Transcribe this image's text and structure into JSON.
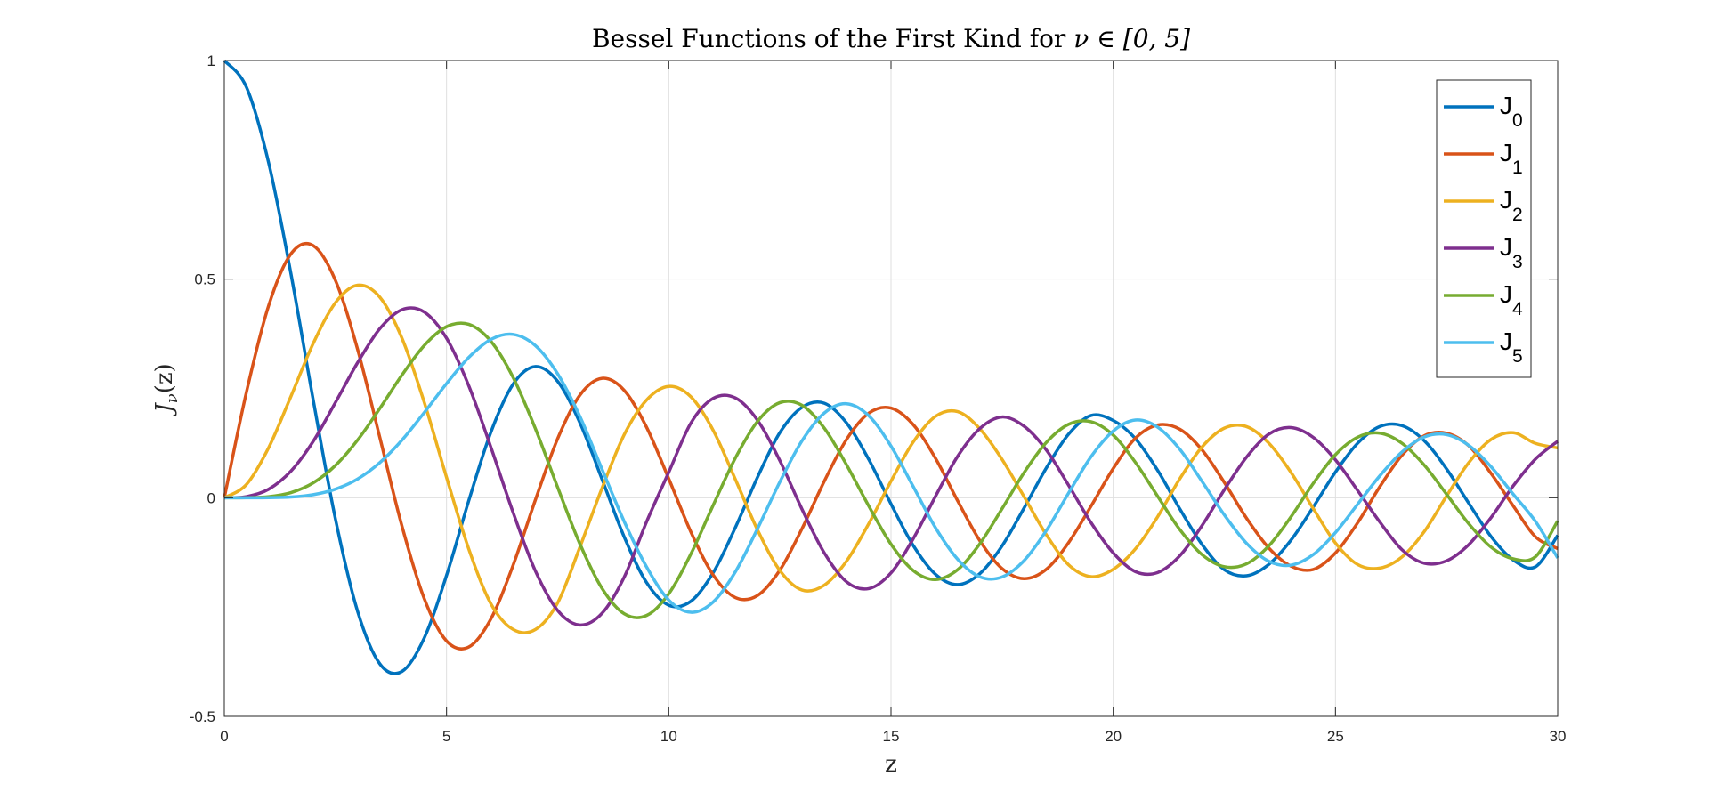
{
  "chart_data": {
    "type": "line",
    "title_text": "Bessel Functions of the First Kind for ",
    "title_math": "ν ∈ [0, 5]",
    "xlabel": "z",
    "ylabel_main": "J",
    "ylabel_sub": "ν",
    "ylabel_paren": "(z)",
    "xlim": [
      0,
      30
    ],
    "ylim": [
      -0.5,
      1
    ],
    "xticks": [
      "0",
      "5",
      "10",
      "15",
      "20",
      "25",
      "30"
    ],
    "yticks": [
      "-0.5",
      "0",
      "0.5",
      "1"
    ],
    "grid": true,
    "legend_position": "top-right",
    "sampling": {
      "x_start": 0,
      "x_end": 30,
      "step": 0.5
    },
    "series": [
      {
        "name": "J",
        "subscript": "0",
        "color": "#0072BD",
        "values": [
          1.0,
          0.9385,
          0.7652,
          0.5118,
          0.2239,
          -0.0484,
          -0.2601,
          -0.3801,
          -0.3971,
          -0.3205,
          -0.1776,
          -0.0068,
          0.1506,
          0.2601,
          0.3001,
          0.2663,
          0.1717,
          0.0419,
          -0.0903,
          -0.1939,
          -0.2459,
          -0.2366,
          -0.1712,
          -0.0677,
          0.0477,
          0.149,
          0.2069,
          0.2162,
          0.1711,
          0.0875,
          -0.0142,
          -0.1092,
          -0.1749,
          -0.1986,
          -0.1734,
          -0.1101,
          -0.0224,
          0.069,
          0.146,
          0.1881,
          0.1767,
          0.135,
          0.0626,
          -0.0258,
          -0.107,
          -0.1646,
          -0.1784,
          -0.1524,
          -0.097,
          -0.0214,
          0.0587,
          0.1247,
          0.163,
          0.1648,
          0.1302,
          0.0659,
          -0.0127,
          -0.0888,
          -0.1423,
          -0.158,
          -0.086
        ]
      },
      {
        "name": "J",
        "subscript": "1",
        "color": "#D95319",
        "values": [
          0.0,
          0.2423,
          0.4401,
          0.5579,
          0.5767,
          0.4971,
          0.3391,
          0.1374,
          -0.066,
          -0.2311,
          -0.3276,
          -0.3414,
          -0.2767,
          -0.1538,
          -0.0047,
          0.1352,
          0.2346,
          0.2731,
          0.2453,
          0.1613,
          0.0435,
          -0.0789,
          -0.1768,
          -0.2284,
          -0.2234,
          -0.1655,
          -0.0703,
          0.038,
          0.1334,
          0.1934,
          0.2051,
          0.1672,
          0.0904,
          -0.0071,
          -0.0984,
          -0.1621,
          -0.185,
          -0.1632,
          -0.102,
          -0.0195,
          0.0668,
          0.1362,
          0.1663,
          0.1565,
          0.1092,
          0.035,
          -0.0469,
          -0.1149,
          -0.1564,
          -0.164,
          -0.1263,
          -0.0572,
          0.0256,
          0.0976,
          0.1418,
          0.1476,
          0.1187,
          0.0558,
          -0.0187,
          -0.0893,
          -0.1164
        ]
      },
      {
        "name": "J",
        "subscript": "2",
        "color": "#EDB120",
        "values": [
          0.0,
          0.0306,
          0.1149,
          0.2321,
          0.3528,
          0.4461,
          0.4861,
          0.4586,
          0.3641,
          0.2178,
          0.0466,
          -0.1173,
          -0.2429,
          -0.3014,
          -0.3014,
          -0.2404,
          -0.113,
          0.0223,
          0.1448,
          0.2235,
          0.2546,
          0.2306,
          0.154,
          0.0416,
          -0.0742,
          -0.1665,
          -0.2112,
          -0.1999,
          -0.1448,
          -0.0592,
          0.038,
          0.1275,
          0.1861,
          0.197,
          0.1576,
          0.0875,
          0.0014,
          -0.0854,
          -0.1537,
          -0.1804,
          -0.1636,
          -0.1168,
          -0.0434,
          0.0437,
          0.1163,
          0.1592,
          0.1626,
          0.125,
          0.058,
          -0.0247,
          -0.1035,
          -0.1528,
          -0.1609,
          -0.1351,
          -0.0772,
          0.004,
          0.0804,
          0.1332,
          0.1487,
          0.1243,
          0.1139
        ]
      },
      {
        "name": "J",
        "subscript": "3",
        "color": "#7E2F8E",
        "values": [
          0.0,
          0.0026,
          0.0196,
          0.061,
          0.1289,
          0.2178,
          0.3091,
          0.3868,
          0.4302,
          0.4247,
          0.3648,
          0.2561,
          0.1148,
          -0.0343,
          -0.1676,
          -0.2578,
          -0.2911,
          -0.2641,
          -0.1809,
          -0.0552,
          0.0584,
          0.1711,
          0.2273,
          0.2282,
          0.1768,
          0.0847,
          -0.0268,
          -0.1263,
          -0.1923,
          -0.2078,
          -0.1718,
          -0.0937,
          0.003,
          0.0948,
          0.1584,
          0.1847,
          0.1631,
          0.1084,
          0.0279,
          -0.0568,
          -0.1262,
          -0.169,
          -0.171,
          -0.1324,
          -0.0634,
          0.0182,
          0.0929,
          0.1454,
          0.1604,
          0.1381,
          0.0867,
          0.0165,
          -0.0558,
          -0.1192,
          -0.1498,
          -0.1442,
          -0.1071,
          -0.0454,
          0.0272,
          0.0885,
          0.1292
        ]
      },
      {
        "name": "J",
        "subscript": "4",
        "color": "#77AC30",
        "values": [
          0.0,
          0.0002,
          0.0025,
          0.0118,
          0.034,
          0.0738,
          0.132,
          0.2044,
          0.2811,
          0.3484,
          0.3912,
          0.3966,
          0.3576,
          0.2748,
          0.1578,
          0.0238,
          -0.1054,
          -0.2075,
          -0.2655,
          -0.2693,
          -0.2196,
          -0.128,
          -0.0169,
          0.0911,
          0.1751,
          0.2176,
          0.2112,
          0.159,
          0.0753,
          -0.019,
          -0.1062,
          -0.1664,
          -0.187,
          -0.1645,
          -0.1051,
          -0.0249,
          0.0584,
          0.127,
          0.1681,
          0.1739,
          0.1432,
          0.0808,
          0.0034,
          -0.073,
          -0.1302,
          -0.1577,
          -0.1511,
          -0.1102,
          -0.0437,
          0.0327,
          0.0984,
          0.1385,
          0.1477,
          0.1243,
          0.0744,
          0.008,
          -0.0595,
          -0.1129,
          -0.1398,
          -0.1349,
          -0.053
        ]
      },
      {
        "name": "J",
        "subscript": "5",
        "color": "#4DBEEE",
        "values": [
          0.0,
          0.0,
          0.0002,
          0.0016,
          0.007,
          0.0196,
          0.043,
          0.0804,
          0.1321,
          0.195,
          0.2611,
          0.3209,
          0.3621,
          0.3735,
          0.3479,
          0.2835,
          0.1858,
          0.0648,
          -0.055,
          -0.1581,
          -0.2341,
          -0.262,
          -0.2383,
          -0.1691,
          -0.0702,
          0.0363,
          0.1305,
          0.1938,
          0.215,
          0.1875,
          0.118,
          0.0257,
          -0.0684,
          -0.1406,
          -0.181,
          -0.1813,
          -0.1431,
          -0.0743,
          0.0114,
          0.0937,
          0.1526,
          0.1777,
          0.1614,
          0.1106,
          0.0372,
          -0.0393,
          -0.1042,
          -0.1452,
          -0.1541,
          -0.13,
          -0.0797,
          -0.0147,
          0.0504,
          0.1049,
          0.1391,
          0.1443,
          0.1196,
          0.0711,
          0.008,
          -0.0541,
          -0.1377
        ]
      }
    ]
  }
}
